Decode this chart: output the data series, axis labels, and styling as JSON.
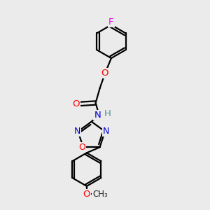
{
  "bg_color": "#ebebeb",
  "bond_color": "#000000",
  "atom_colors": {
    "O": "#ff0000",
    "N": "#0000cc",
    "F": "#ee00ee",
    "C": "#000000",
    "H": "#4a9090"
  },
  "line_width": 1.6,
  "font_size": 9.5,
  "figsize": [
    3.0,
    3.0
  ],
  "dpi": 100
}
